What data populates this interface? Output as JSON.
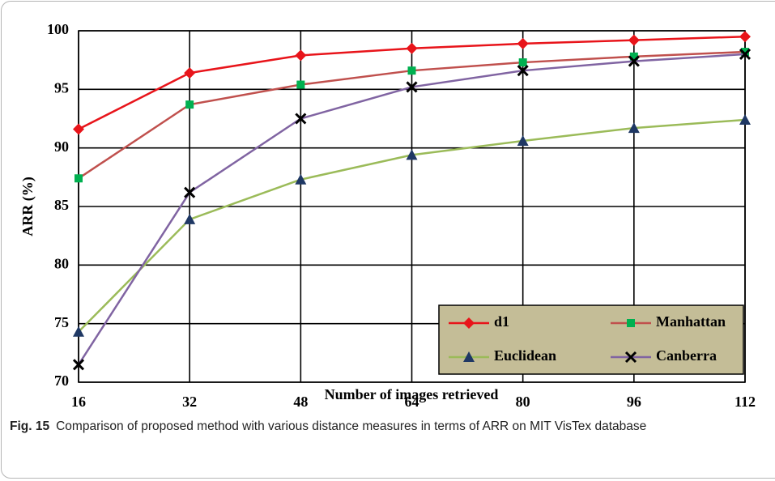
{
  "chart_data": {
    "type": "line",
    "x_label": "Number of images retrieved",
    "y_label": "ARR (%)",
    "x": [
      16,
      32,
      48,
      64,
      80,
      96,
      112
    ],
    "xlim": [
      16,
      112
    ],
    "xticks": [
      16,
      32,
      48,
      64,
      80,
      96,
      112
    ],
    "ylim": [
      70,
      100
    ],
    "yticks": [
      70,
      75,
      80,
      85,
      90,
      95,
      100
    ],
    "grid": true,
    "legend_position": "lower right",
    "legend_color": "#c4bd97",
    "series": [
      {
        "name": "d1",
        "color": "#e8141a",
        "marker": "diamond",
        "marker_color": "#e8141a",
        "values": [
          91.6,
          96.4,
          97.9,
          98.5,
          98.9,
          99.2,
          99.5
        ]
      },
      {
        "name": "Manhattan",
        "color": "#c0504d",
        "marker": "square",
        "marker_color": "#00b050",
        "values": [
          87.4,
          93.7,
          95.4,
          96.6,
          97.3,
          97.8,
          98.2
        ]
      },
      {
        "name": "Euclidean",
        "color": "#9bbb59",
        "marker": "triangle",
        "marker_color": "#1f3864",
        "values": [
          74.3,
          83.9,
          87.3,
          89.4,
          90.6,
          91.7,
          92.4
        ]
      },
      {
        "name": "Canberra",
        "color": "#8064a2",
        "marker": "cross",
        "marker_color": "#000000",
        "values": [
          71.5,
          86.2,
          92.5,
          95.2,
          96.6,
          97.4,
          98.0
        ]
      }
    ]
  },
  "caption": {
    "label": "Fig. 15",
    "text": "Comparison of proposed method with various distance measures in terms of ARR on MIT VisTex database"
  }
}
